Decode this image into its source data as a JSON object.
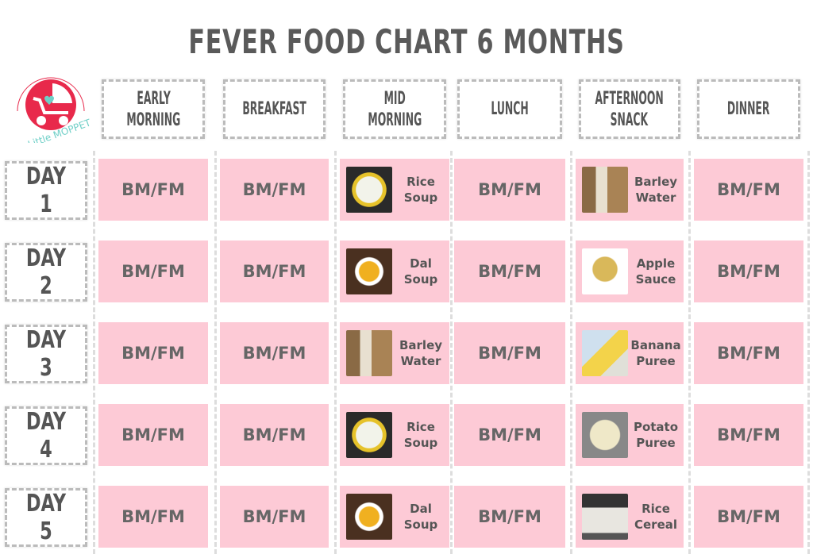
{
  "title": "FEVER FOOD CHART 6 MONTHS",
  "logo": {
    "text": "My Little MOPPET",
    "colors": {
      "red": "#e8294b",
      "teal": "#6fcfc7"
    }
  },
  "columns": [
    "EARLY MORNING",
    "BREAKFAST",
    "MID MORNING",
    "LUNCH",
    "AFTERNOON SNACK",
    "DINNER"
  ],
  "columns_lines": [
    [
      "EARLY",
      "MORNING"
    ],
    [
      "BREAKFAST",
      ""
    ],
    [
      "MID",
      "MORNING"
    ],
    [
      "LUNCH",
      ""
    ],
    [
      "AFTERNOON",
      "SNACK"
    ],
    [
      "DINNER",
      ""
    ]
  ],
  "colors": {
    "cell": "#fdcad6",
    "text": "#555555"
  },
  "rows": [
    {
      "day": "DAY 1",
      "cells": [
        "BM/FM",
        "BM/FM",
        {
          "food": [
            "Rice",
            "Soup"
          ],
          "image": "rice-soup"
        },
        "BM/FM",
        {
          "food": [
            "Barley",
            "Water"
          ],
          "image": "barley-water"
        },
        "BM/FM"
      ]
    },
    {
      "day": "DAY 2",
      "cells": [
        "BM/FM",
        "BM/FM",
        {
          "food": [
            "Dal",
            "Soup"
          ],
          "image": "dal-soup"
        },
        "BM/FM",
        {
          "food": [
            "Apple",
            "Sauce"
          ],
          "image": "apple-sauce"
        },
        "BM/FM"
      ]
    },
    {
      "day": "DAY 3",
      "cells": [
        "BM/FM",
        "BM/FM",
        {
          "food": [
            "Barley",
            "Water"
          ],
          "image": "barley-water"
        },
        "BM/FM",
        {
          "food": [
            "Banana",
            "Puree"
          ],
          "image": "banana-puree"
        },
        "BM/FM"
      ]
    },
    {
      "day": "DAY 4",
      "cells": [
        "BM/FM",
        "BM/FM",
        {
          "food": [
            "Rice",
            "Soup"
          ],
          "image": "rice-soup"
        },
        "BM/FM",
        {
          "food": [
            "Potato",
            "Puree"
          ],
          "image": "potato-puree"
        },
        "BM/FM"
      ]
    },
    {
      "day": "DAY 5",
      "cells": [
        "BM/FM",
        "BM/FM",
        {
          "food": [
            "Dal",
            "Soup"
          ],
          "image": "dal-soup"
        },
        "BM/FM",
        {
          "food": [
            "Rice",
            "Cereal"
          ],
          "image": "rice-cereal"
        },
        "BM/FM"
      ]
    }
  ]
}
